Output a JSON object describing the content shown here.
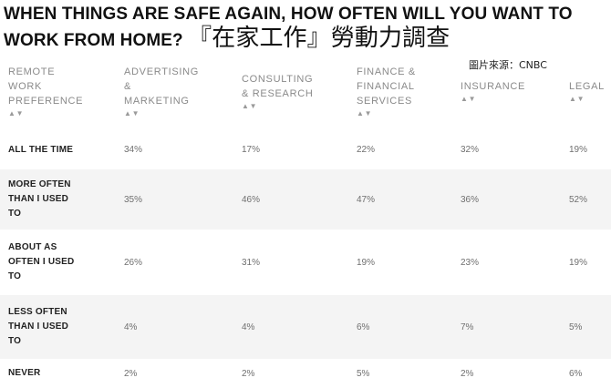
{
  "headline": {
    "english": "WHEN THINGS ARE SAFE AGAIN, HOW OFTEN WILL YOU WANT TO WORK FROM HOME?",
    "chinese": "『在家工作』勞動力調查"
  },
  "credit": "圖片來源：CNBC",
  "table": {
    "sort_glyph": "▲▼",
    "headers": [
      {
        "label": "REMOTE WORK PREFERENCE",
        "lines": [
          "REMOTE",
          "WORK",
          "PREFERENCE"
        ]
      },
      {
        "label": "ADVERTISING & MARKETING",
        "lines": [
          "ADVERTISING",
          "&",
          "MARKETING"
        ]
      },
      {
        "label": "CONSULTING & RESEARCH",
        "lines": [
          "CONSULTING",
          "& RESEARCH"
        ]
      },
      {
        "label": "FINANCE & FINANCIAL SERVICES",
        "lines": [
          "FINANCE &",
          "FINANCIAL",
          "SERVICES"
        ]
      },
      {
        "label": "INSURANCE",
        "lines": [
          "INSURANCE"
        ]
      },
      {
        "label": "LEGAL",
        "lines": [
          "LEGAL"
        ]
      }
    ],
    "rows": [
      {
        "lines": [
          "ALL THE TIME"
        ],
        "values": [
          "34%",
          "17%",
          "22%",
          "32%",
          "19%"
        ]
      },
      {
        "lines": [
          "MORE OFTEN",
          "THAN I USED",
          "TO"
        ],
        "values": [
          "35%",
          "46%",
          "47%",
          "36%",
          "52%"
        ]
      },
      {
        "lines": [
          "ABOUT AS",
          "OFTEN I USED",
          "TO"
        ],
        "values": [
          "26%",
          "31%",
          "19%",
          "23%",
          "19%"
        ]
      },
      {
        "lines": [
          "LESS OFTEN",
          "THAN I USED",
          "TO"
        ],
        "values": [
          "4%",
          "4%",
          "6%",
          "7%",
          "5%"
        ]
      },
      {
        "lines": [
          "NEVER"
        ],
        "values": [
          "2%",
          "2%",
          "5%",
          "2%",
          "6%"
        ]
      }
    ]
  }
}
